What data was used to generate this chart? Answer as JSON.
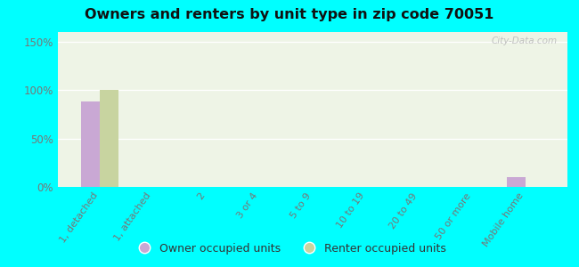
{
  "title": "Owners and renters by unit type in zip code 70051",
  "categories": [
    "1, detached",
    "1, attached",
    "2",
    "3 or 4",
    "5 to 9",
    "10 to 19",
    "20 to 49",
    "50 or more",
    "Mobile home"
  ],
  "owner_values": [
    88,
    0,
    0,
    0,
    0,
    0,
    0,
    0,
    10
  ],
  "renter_values": [
    100,
    0,
    0,
    0,
    0,
    0,
    0,
    0,
    0
  ],
  "owner_color": "#c9a8d4",
  "renter_color": "#c8d4a0",
  "background_color": "#00ffff",
  "plot_bg": "#eef4e6",
  "yticks": [
    0,
    50,
    100,
    150
  ],
  "ylim": [
    0,
    160
  ],
  "bar_width": 0.35,
  "watermark": "City-Data.com",
  "tick_color": "#777777",
  "title_color": "#111111"
}
